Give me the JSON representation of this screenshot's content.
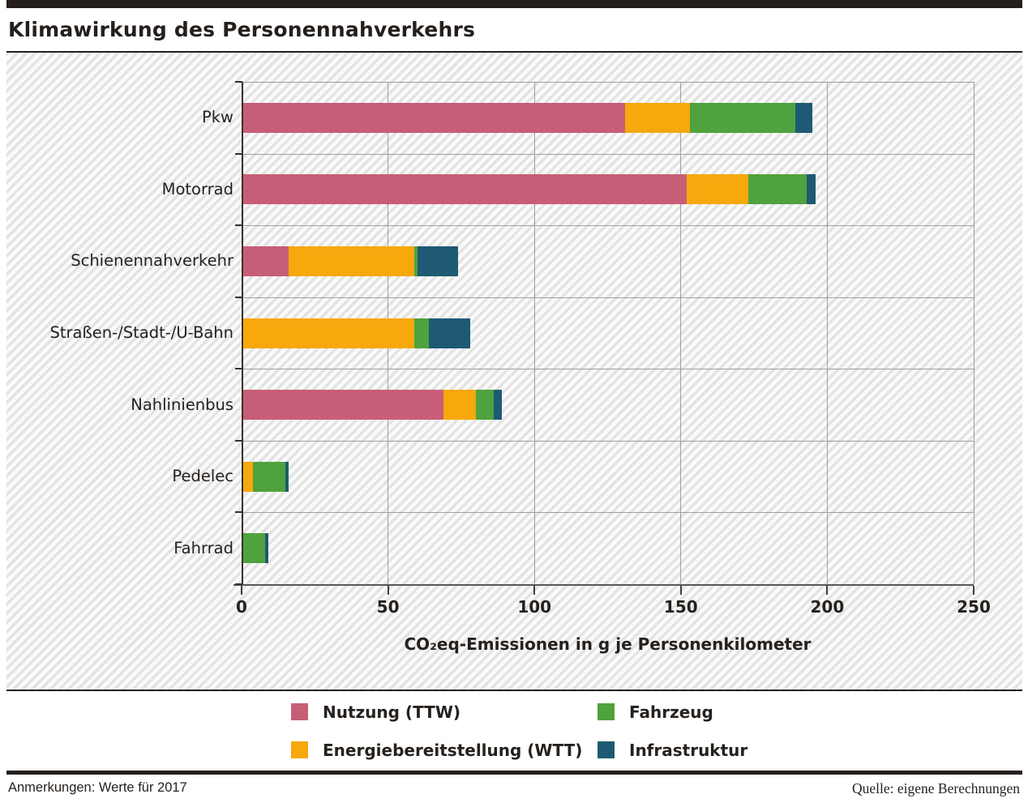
{
  "title": "Klimawirkung des Personennahverkehrs",
  "chart_data": {
    "type": "bar",
    "orientation": "horizontal",
    "stacked": true,
    "title": "Klimawirkung des Personennahverkehrs",
    "categories": [
      "Pkw",
      "Motorrad",
      "Schienennahverkehr",
      "Straßen-/Stadt-/U-Bahn",
      "Nahlinienbus",
      "Pedelec",
      "Fahrrad"
    ],
    "series": [
      {
        "name": "Nutzung (TTW)",
        "color": "#c75e77",
        "values": [
          131,
          152,
          16,
          0,
          69,
          0,
          0
        ]
      },
      {
        "name": "Energiebereitstellung (WTT)",
        "color": "#f6a80c",
        "values": [
          22,
          21,
          43,
          59,
          11,
          4,
          0
        ]
      },
      {
        "name": "Fahrzeug",
        "color": "#4fa23d",
        "values": [
          36,
          20,
          1,
          5,
          6,
          11,
          8
        ]
      },
      {
        "name": "Infrastruktur",
        "color": "#1e5a73",
        "values": [
          6,
          3,
          14,
          14,
          3,
          1,
          1
        ]
      }
    ],
    "totals": [
      195,
      196,
      74,
      78,
      89,
      16,
      9
    ],
    "xlabel": "CO₂eq-Emissionen in g je Personenkilometer",
    "xlim": [
      0,
      250
    ],
    "xticks": [
      0,
      50,
      100,
      150,
      200,
      250
    ],
    "grid": true,
    "legend_position": "bottom"
  },
  "footer": {
    "left": "Anmerkungen: Werte für 2017",
    "right": "Quelle: eigene Berechnungen"
  }
}
